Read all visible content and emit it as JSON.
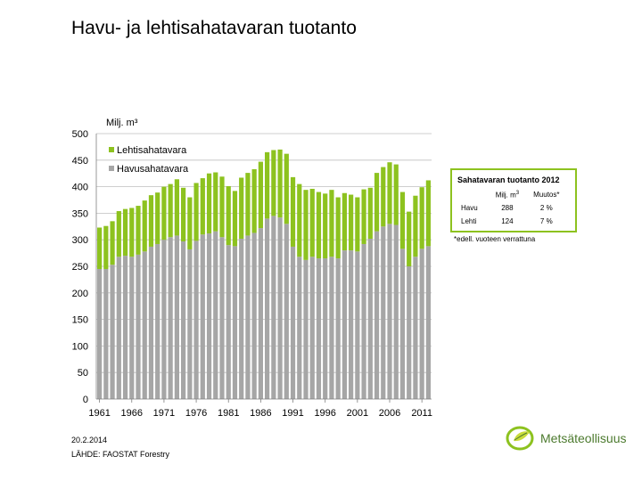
{
  "slide": {
    "title": "Havu- ja lehtisahatavaran tuotanto",
    "date": "20.2.2014",
    "source": "LÄHDE: FAOSTAT Forestry"
  },
  "logo": {
    "text": "Metsäteollisuus",
    "icon": "leaf-logo-icon"
  },
  "info_box": {
    "title": "Sahatavaran tuotanto 2012",
    "col_unit": "Milj. m",
    "col_unit_sup": "3",
    "col_change": "Muutos*",
    "rows": [
      {
        "label": "Havu",
        "value": "288",
        "change": "2 %"
      },
      {
        "label": "Lehti",
        "value": "124",
        "change": "7 %"
      }
    ],
    "footnote": "*edell. vuoteen verrattuna"
  },
  "chart_data": {
    "type": "bar",
    "stacked": true,
    "ylabel": "Milj. m³",
    "ylim": [
      0,
      500
    ],
    "yticks": [
      0,
      50,
      100,
      150,
      200,
      250,
      300,
      350,
      400,
      450,
      500
    ],
    "xtick_labels": [
      "1961",
      "1966",
      "1971",
      "1976",
      "1981",
      "1986",
      "1991",
      "1996",
      "2001",
      "2006",
      "2011"
    ],
    "legend_position": "top-left",
    "grid": true,
    "colors": {
      "Havusahatavara": "#a6a6a6",
      "Lehtisahatavara": "#8dc21f"
    },
    "categories": [
      1961,
      1962,
      1963,
      1964,
      1965,
      1966,
      1967,
      1968,
      1969,
      1970,
      1971,
      1972,
      1973,
      1974,
      1975,
      1976,
      1977,
      1978,
      1979,
      1980,
      1981,
      1982,
      1983,
      1984,
      1985,
      1986,
      1987,
      1988,
      1989,
      1990,
      1991,
      1992,
      1993,
      1994,
      1995,
      1996,
      1997,
      1998,
      1999,
      2000,
      2001,
      2002,
      2003,
      2004,
      2005,
      2006,
      2007,
      2008,
      2009,
      2010,
      2011,
      2012
    ],
    "series": [
      {
        "name": "Havusahatavara",
        "values": [
          245,
          245,
          253,
          268,
          270,
          268,
          272,
          278,
          287,
          292,
          300,
          305,
          308,
          297,
          282,
          298,
          310,
          312,
          316,
          305,
          290,
          288,
          302,
          308,
          313,
          322,
          340,
          345,
          342,
          330,
          287,
          268,
          262,
          268,
          265,
          265,
          268,
          265,
          280,
          280,
          278,
          292,
          302,
          316,
          325,
          330,
          328,
          283,
          250,
          268,
          283,
          288
        ]
      },
      {
        "name": "Lehtisahatavara",
        "values": [
          78,
          81,
          82,
          86,
          88,
          92,
          92,
          96,
          97,
          97,
          100,
          100,
          106,
          101,
          98,
          109,
          106,
          113,
          111,
          114,
          111,
          104,
          115,
          118,
          120,
          125,
          125,
          124,
          128,
          132,
          131,
          137,
          132,
          128,
          125,
          122,
          126,
          115,
          108,
          105,
          102,
          103,
          96,
          110,
          112,
          116,
          114,
          107,
          103,
          115,
          116,
          124
        ]
      }
    ]
  }
}
